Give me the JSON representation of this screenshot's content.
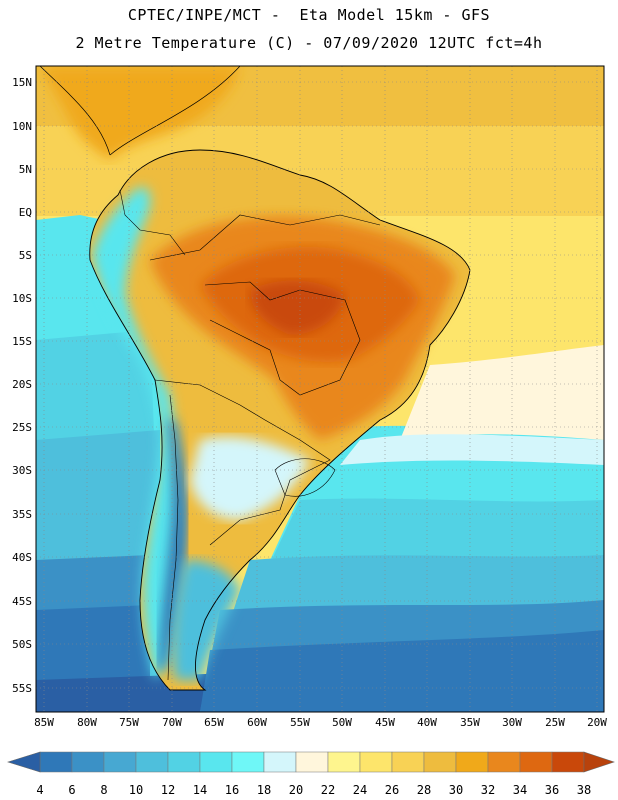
{
  "title": {
    "line1": "CPTEC/INPE/MCT -  Eta Model 15km - GFS",
    "line2": "2 Metre Temperature (C) - 07/09/2020 12UTC fct=4h"
  },
  "map": {
    "variable": "2 Metre Temperature",
    "units": "C",
    "lat_labels": [
      "15N",
      "10N",
      "5N",
      "EQ",
      "5S",
      "10S",
      "15S",
      "20S",
      "25S",
      "30S",
      "35S",
      "40S",
      "45S",
      "50S",
      "55S"
    ],
    "lon_labels": [
      "85W",
      "80W",
      "75W",
      "70W",
      "65W",
      "60W",
      "55W",
      "50W",
      "45W",
      "40W",
      "35W",
      "30W",
      "25W",
      "20W"
    ],
    "lat_range": [
      17,
      -57.5
    ],
    "lon_range": [
      -86.5,
      -20
    ],
    "grid": "dotted"
  },
  "colorbar": {
    "levels": [
      "4",
      "6",
      "8",
      "10",
      "12",
      "14",
      "16",
      "18",
      "20",
      "22",
      "24",
      "26",
      "28",
      "30",
      "32",
      "34",
      "36",
      "38"
    ],
    "colors": [
      "#2a5fa4",
      "#2f78b8",
      "#3b91c6",
      "#47a8d2",
      "#4ebfdc",
      "#52d2e4",
      "#59e6ee",
      "#6ff7f7",
      "#d4f6fb",
      "#fff6dc",
      "#fef58e",
      "#fde56b",
      "#f8d255",
      "#eebc3e",
      "#f0a91a",
      "#e9871d",
      "#de6811",
      "#c9480a",
      "#b8420c"
    ]
  }
}
